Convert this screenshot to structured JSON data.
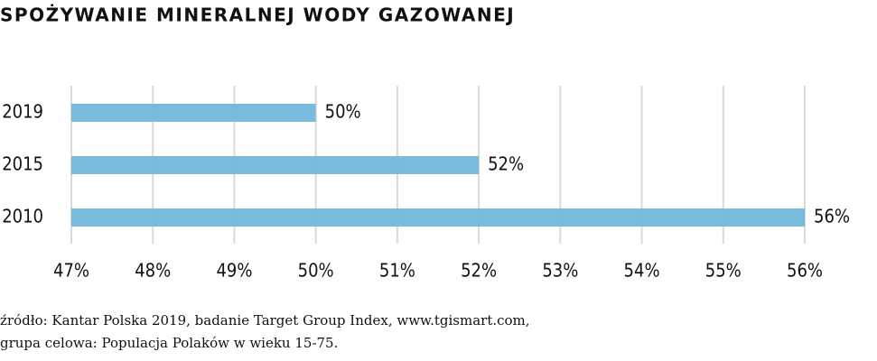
{
  "chart_data": {
    "type": "hbar",
    "title": "SPOŻYWANIE MINERALNEJ WODY GAZOWANEJ",
    "categories": [
      "2019",
      "2015",
      "2010"
    ],
    "values": [
      50,
      52,
      56
    ],
    "value_labels": [
      "50%",
      "52%",
      "56%"
    ],
    "color": "#74b9dc",
    "xlim": [
      47,
      56
    ],
    "xticks": [
      {
        "value": 47,
        "label": "47%"
      },
      {
        "value": 48,
        "label": "48%"
      },
      {
        "value": 49,
        "label": "49%"
      },
      {
        "value": 50,
        "label": "50%"
      },
      {
        "value": 51,
        "label": "51%"
      },
      {
        "value": 52,
        "label": "52%"
      },
      {
        "value": 53,
        "label": "53%"
      },
      {
        "value": 54,
        "label": "54%"
      },
      {
        "value": 55,
        "label": "55%"
      },
      {
        "value": 56,
        "label": "56%"
      }
    ],
    "grid": true,
    "source": [
      "źródło: Kantar Polska 2019, badanie Target Group Index, www.tgismart.com,",
      "grupa celowa: Populacja Polaków w wieku 15-75."
    ]
  }
}
